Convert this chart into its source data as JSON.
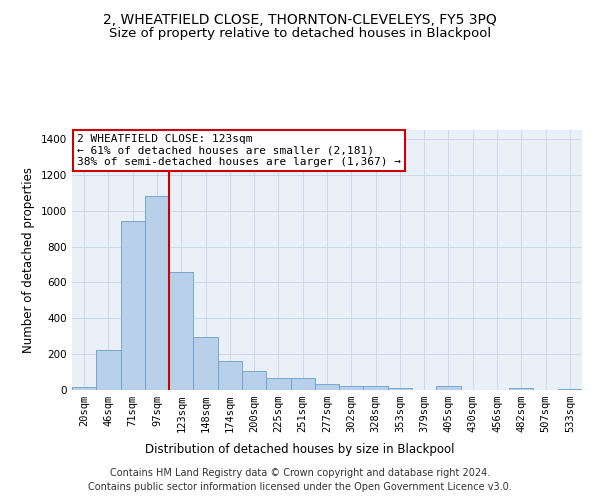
{
  "title_line1": "2, WHEATFIELD CLOSE, THORNTON-CLEVELEYS, FY5 3PQ",
  "title_line2": "Size of property relative to detached houses in Blackpool",
  "xlabel": "Distribution of detached houses by size in Blackpool",
  "ylabel": "Number of detached properties",
  "categories": [
    "20sqm",
    "46sqm",
    "71sqm",
    "97sqm",
    "123sqm",
    "148sqm",
    "174sqm",
    "200sqm",
    "225sqm",
    "251sqm",
    "277sqm",
    "302sqm",
    "328sqm",
    "353sqm",
    "379sqm",
    "405sqm",
    "430sqm",
    "456sqm",
    "482sqm",
    "507sqm",
    "533sqm"
  ],
  "values": [
    15,
    225,
    940,
    1080,
    660,
    295,
    160,
    105,
    65,
    65,
    32,
    25,
    22,
    12,
    0,
    20,
    0,
    0,
    12,
    0,
    5
  ],
  "bar_color": "#b8d0ea",
  "bar_edge_color": "#6a9fc8",
  "vline_color": "#cc0000",
  "annotation_text": "2 WHEATFIELD CLOSE: 123sqm\n← 61% of detached houses are smaller (2,181)\n38% of semi-detached houses are larger (1,367) →",
  "annotation_box_color": "#ffffff",
  "annotation_box_edge_color": "#cc0000",
  "ylim": [
    0,
    1450
  ],
  "yticks": [
    0,
    200,
    400,
    600,
    800,
    1000,
    1200,
    1400
  ],
  "footer_line1": "Contains HM Land Registry data © Crown copyright and database right 2024.",
  "footer_line2": "Contains public sector information licensed under the Open Government Licence v3.0.",
  "plot_bg_color": "#eaf0f8",
  "title_fontsize": 10,
  "subtitle_fontsize": 9.5,
  "axis_label_fontsize": 8.5,
  "tick_fontsize": 7.5,
  "footer_fontsize": 7,
  "annot_fontsize": 8
}
